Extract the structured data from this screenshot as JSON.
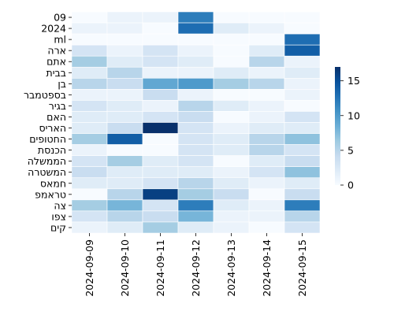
{
  "chart_data": {
    "type": "heatmap",
    "title": "",
    "xlabel": "",
    "ylabel": "",
    "x_categories": [
      "2024-09-09",
      "2024-09-10",
      "2024-09-11",
      "2024-09-12",
      "2024-09-13",
      "2024-09-14",
      "2024-09-15"
    ],
    "y_categories": [
      "09",
      "2024",
      "ml",
      "ארה",
      "אתם",
      "בבית",
      "בן",
      "בספטמבר",
      "בגיר",
      "האם",
      "האריס",
      "החטופים",
      "הכנסת",
      "הממשלה",
      "המשטרה",
      "חמאס",
      "טראמפ",
      "צה",
      "צפו",
      "קים"
    ],
    "values": [
      [
        0,
        1,
        1,
        12,
        0,
        0,
        0
      ],
      [
        1,
        1,
        0,
        13,
        2,
        1,
        0
      ],
      [
        0,
        0,
        0,
        0,
        0,
        0,
        13
      ],
      [
        3,
        1,
        3,
        1,
        0,
        2,
        14
      ],
      [
        6,
        2,
        3,
        2,
        0,
        5,
        1
      ],
      [
        2,
        5,
        1,
        1,
        2,
        1,
        2
      ],
      [
        5,
        4,
        9,
        10,
        6,
        5,
        1
      ],
      [
        1,
        1,
        4,
        1,
        0,
        0,
        1
      ],
      [
        3,
        2,
        1,
        5,
        2,
        1,
        0
      ],
      [
        2,
        2,
        3,
        4,
        0,
        1,
        3
      ],
      [
        2,
        4,
        17,
        3,
        1,
        2,
        2
      ],
      [
        6,
        14,
        0,
        3,
        2,
        5,
        7
      ],
      [
        1,
        0,
        0,
        3,
        2,
        5,
        3
      ],
      [
        3,
        6,
        2,
        3,
        0,
        2,
        4
      ],
      [
        4,
        2,
        2,
        2,
        1,
        3,
        7
      ],
      [
        2,
        2,
        3,
        5,
        2,
        1,
        2
      ],
      [
        0,
        5,
        16,
        6,
        4,
        0,
        4
      ],
      [
        6,
        8,
        3,
        12,
        2,
        1,
        12
      ],
      [
        3,
        5,
        4,
        8,
        1,
        1,
        5
      ],
      [
        1,
        2,
        6,
        2,
        1,
        0,
        3
      ]
    ],
    "colorbar": {
      "min": 0,
      "max": 17,
      "ticks": [
        0,
        5,
        10,
        15
      ]
    },
    "colormap": "Blues",
    "legend_position": "right",
    "grid": false
  }
}
